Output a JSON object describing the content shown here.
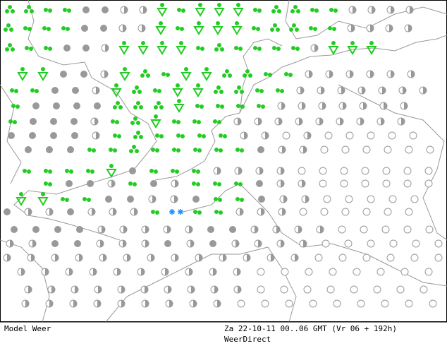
{
  "footer": {
    "left": "Model Weer",
    "right": "Za 22-10-11 00..06 GMT (Vr 06 + 192h)",
    "source": "WeerDirect"
  }
}
